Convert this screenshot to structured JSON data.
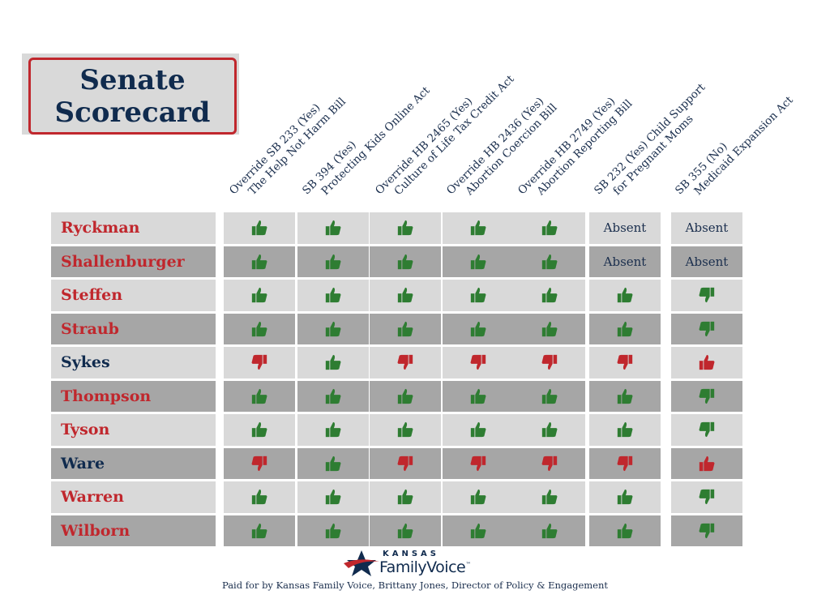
{
  "title": {
    "line1": "Senate",
    "line2": "Scorecard"
  },
  "colors": {
    "red": "#c0272d",
    "navy": "#102b4e",
    "green": "#2e7d32",
    "light_row": "#d9d9d9",
    "dark_row": "#a6a6a6"
  },
  "columns": [
    {
      "line1": "Override SB 233 (Yes)",
      "line2": "The Help Not Harm Bill"
    },
    {
      "line1": "SB 394 (Yes)",
      "line2": "Protecting Kids Online Act"
    },
    {
      "line1": "Override HB 2465 (Yes)",
      "line2": "Culture of Life Tax Credit Act"
    },
    {
      "line1": "Override HB 2436 (Yes)",
      "line2": "Abortion Coercion Bill"
    },
    {
      "line1": "Override HB 2749 (Yes)",
      "line2": "Abortion Reporting Bill"
    },
    {
      "line1": "SB 232 (Yes)  Child Support",
      "line2": "for Pregnant Moms"
    },
    {
      "line1": "SB 355 (No)",
      "line2": "Medicaid Expansion Act"
    }
  ],
  "senators": [
    {
      "name": "Ryckman",
      "party": "R",
      "votes": [
        "up-green",
        "up-green",
        "up-green",
        "up-green",
        "up-green",
        "absent",
        "absent"
      ]
    },
    {
      "name": "Shallenburger",
      "party": "R",
      "votes": [
        "up-green",
        "up-green",
        "up-green",
        "up-green",
        "up-green",
        "absent",
        "absent"
      ]
    },
    {
      "name": "Steffen",
      "party": "R",
      "votes": [
        "up-green",
        "up-green",
        "up-green",
        "up-green",
        "up-green",
        "up-green",
        "down-green"
      ]
    },
    {
      "name": "Straub",
      "party": "R",
      "votes": [
        "up-green",
        "up-green",
        "up-green",
        "up-green",
        "up-green",
        "up-green",
        "down-green"
      ]
    },
    {
      "name": "Sykes",
      "party": "D",
      "votes": [
        "down-red",
        "up-green",
        "down-red",
        "down-red",
        "down-red",
        "down-red",
        "up-red"
      ]
    },
    {
      "name": "Thompson",
      "party": "R",
      "votes": [
        "up-green",
        "up-green",
        "up-green",
        "up-green",
        "up-green",
        "up-green",
        "down-green"
      ]
    },
    {
      "name": "Tyson",
      "party": "R",
      "votes": [
        "up-green",
        "up-green",
        "up-green",
        "up-green",
        "up-green",
        "up-green",
        "down-green"
      ]
    },
    {
      "name": "Ware",
      "party": "D",
      "votes": [
        "down-red",
        "up-green",
        "down-red",
        "down-red",
        "down-red",
        "down-red",
        "up-red"
      ]
    },
    {
      "name": "Warren",
      "party": "R",
      "votes": [
        "up-green",
        "up-green",
        "up-green",
        "up-green",
        "up-green",
        "up-green",
        "down-green"
      ]
    },
    {
      "name": "Wilborn",
      "party": "R",
      "votes": [
        "up-green",
        "up-green",
        "up-green",
        "up-green",
        "up-green",
        "up-green",
        "down-green"
      ]
    }
  ],
  "absent_label": "Absent",
  "logo": {
    "small": "KANSAS",
    "main": "FamilyVoice",
    "tm": "™"
  },
  "disclaimer": "Paid for by Kansas Family Voice, Brittany Jones, Director of Policy & Engagement"
}
